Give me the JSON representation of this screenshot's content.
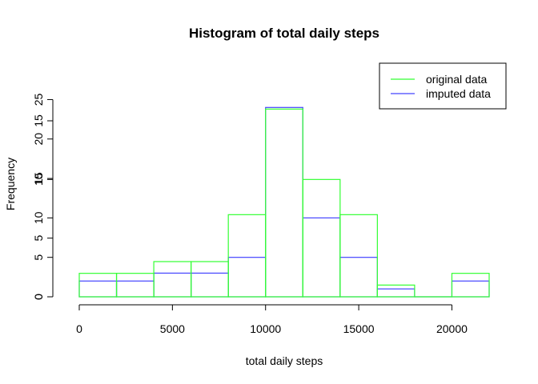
{
  "chart_data": {
    "type": "bar",
    "title": "Histogram of total daily steps",
    "xlabel": "total daily steps",
    "ylabel": "Frequency",
    "x_ticks": [
      0,
      5000,
      10000,
      15000,
      20000
    ],
    "x_tick_labels": [
      "0",
      "5000",
      "10000",
      "15000",
      "20000"
    ],
    "xlim": [
      0,
      22000
    ],
    "bin_width": 2000,
    "bin_starts": [
      0,
      2000,
      4000,
      6000,
      8000,
      10000,
      12000,
      14000,
      16000,
      18000,
      20000
    ],
    "series": [
      {
        "name": "original data",
        "color": "#33ff33",
        "values": [
          2,
          2,
          3,
          3,
          7,
          16,
          10,
          7,
          1,
          0,
          2
        ],
        "ylim": [
          0,
          19.5
        ],
        "y_ticks": [
          0,
          5,
          10,
          15
        ],
        "y_tick_labels": [
          "0",
          "5",
          "10",
          "15"
        ]
      },
      {
        "name": "imputed data",
        "color": "#4444ff",
        "values": [
          2,
          2,
          3,
          3,
          5,
          24,
          10,
          5,
          1,
          0,
          2
        ],
        "ylim": [
          0,
          29
        ],
        "y_ticks": [
          0,
          5,
          10,
          15,
          20,
          25
        ],
        "y_tick_labels": [
          "0",
          "5",
          "10",
          "15",
          "20",
          "25"
        ]
      }
    ],
    "legend_position": "top-right",
    "grid": false
  }
}
